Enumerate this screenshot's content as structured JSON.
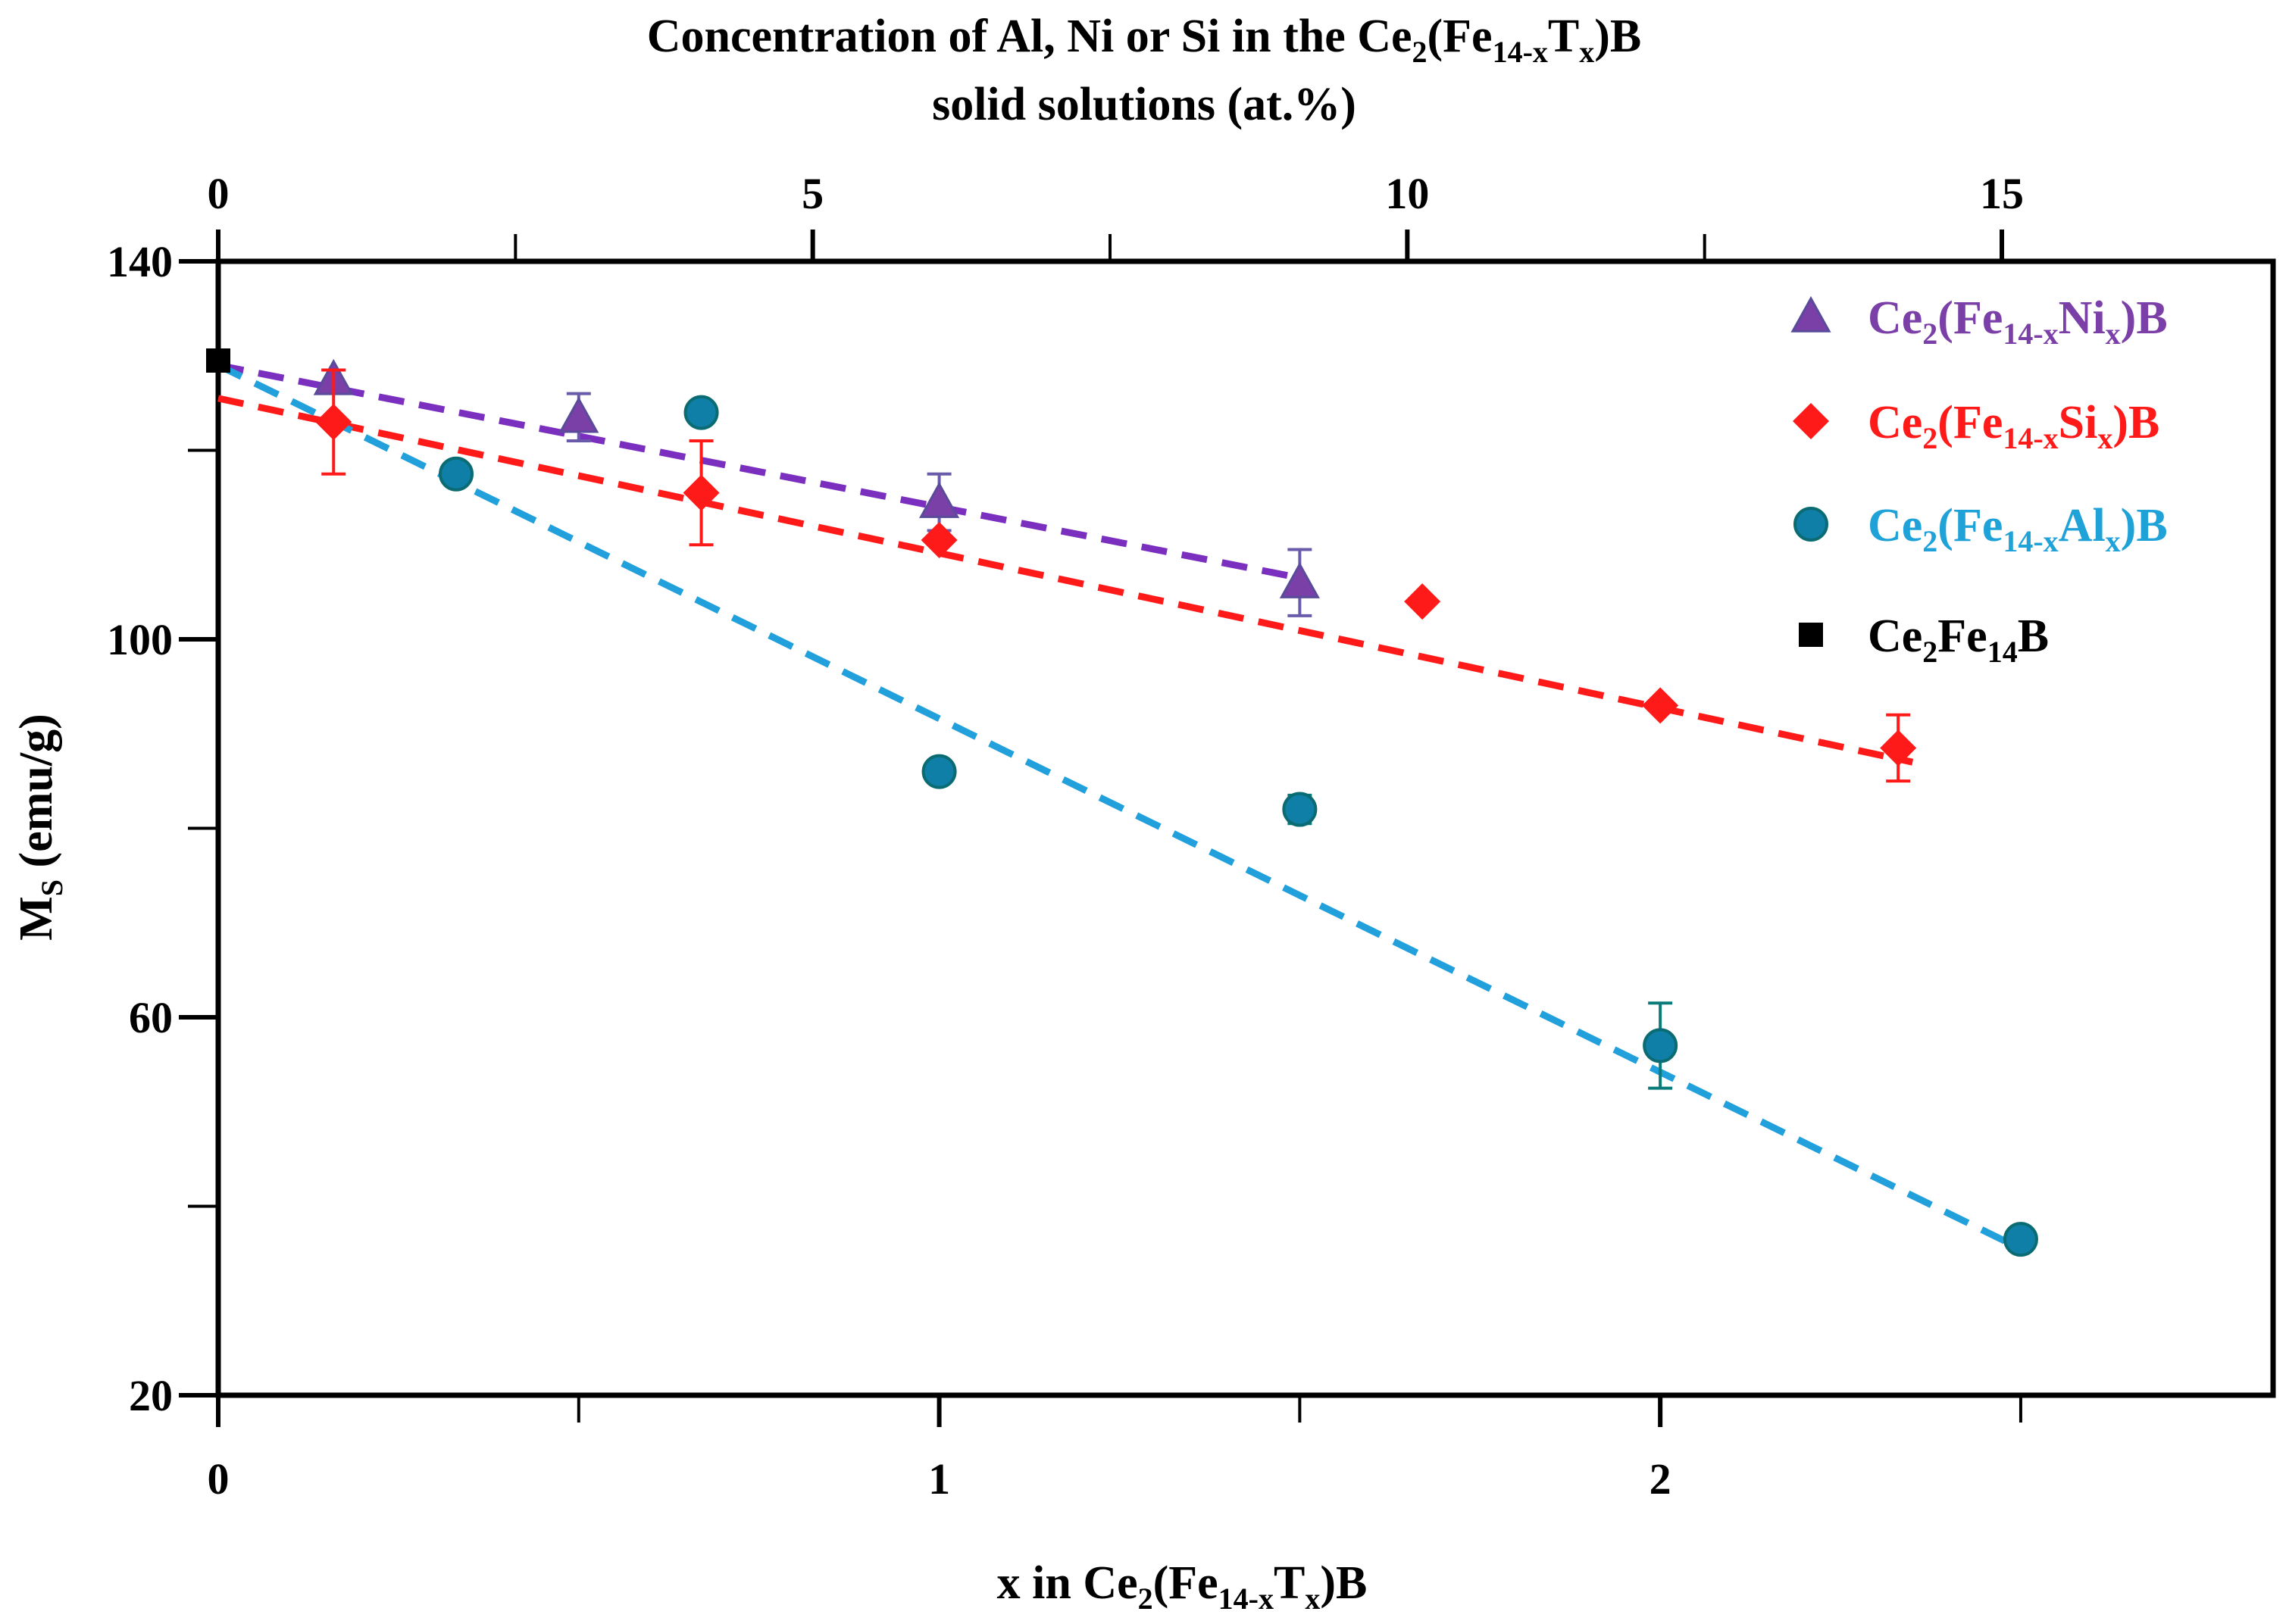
{
  "chart_data": {
    "type": "scatter",
    "title": {
      "line1": [
        "Concentration of Al, Ni or Si in the Ce",
        "2",
        "(Fe",
        "14-x",
        "T",
        "x",
        ")B"
      ],
      "line2": "solid solutions (at.%)"
    },
    "xlabel": [
      "x in Ce",
      "2",
      "(Fe",
      "14-x",
      "T",
      "x",
      ")B"
    ],
    "ylabel": [
      "M",
      "S",
      " (emu/g)"
    ],
    "x_range": [
      0,
      2.85
    ],
    "y_range": [
      20,
      140
    ],
    "x_ticks": [
      {
        "value": 0,
        "label": "0"
      },
      {
        "value": 1,
        "label": "1"
      },
      {
        "value": 2,
        "label": "2"
      }
    ],
    "x_minor_ticks": [
      0.5,
      1.5,
      2.5
    ],
    "y_ticks": [
      {
        "value": 20,
        "label": "20"
      },
      {
        "value": 60,
        "label": "60"
      },
      {
        "value": 100,
        "label": "100"
      },
      {
        "value": 140,
        "label": "140"
      }
    ],
    "y_minor_ticks": [
      40,
      80,
      120
    ],
    "top_axis": {
      "per_x_unit": 6.0635,
      "ticks": [
        {
          "value": 0,
          "label": "0"
        },
        {
          "value": 5,
          "label": "5"
        },
        {
          "value": 10,
          "label": "10"
        },
        {
          "value": 15,
          "label": "15"
        }
      ],
      "minor_ticks": [
        2.5,
        7.5,
        12.5
      ]
    },
    "series": [
      {
        "name": [
          "Ce",
          "2",
          "(Fe",
          "14-x",
          "Ni",
          "x",
          ")B"
        ],
        "color": "#7b3fa8",
        "marker": "triangle",
        "points": [
          {
            "x": 0.16,
            "y": 127.5,
            "err": 1.0
          },
          {
            "x": 0.5,
            "y": 123.5,
            "err": 2.5
          },
          {
            "x": 1.0,
            "y": 114.5,
            "err": 3.0
          },
          {
            "x": 1.5,
            "y": 106.0,
            "err": 3.5
          }
        ],
        "fit": {
          "x0": 0.0,
          "y0": 129.0,
          "x1": 1.5,
          "y1": 106.5,
          "color": "#7b2fbf"
        }
      },
      {
        "name": [
          "Ce",
          "2",
          "(Fe",
          "14-x",
          "Si",
          "x",
          ")B"
        ],
        "color": "#ff1a1a",
        "marker": "diamond",
        "points": [
          {
            "x": 0.16,
            "y": 123.0,
            "err": 5.5
          },
          {
            "x": 0.67,
            "y": 115.5,
            "err": 5.5
          },
          {
            "x": 1.0,
            "y": 110.5,
            "err": 0
          },
          {
            "x": 1.67,
            "y": 104.0,
            "err": 0
          },
          {
            "x": 2.0,
            "y": 93.0,
            "err": 0
          },
          {
            "x": 2.33,
            "y": 88.5,
            "err": 3.5
          }
        ],
        "fit": {
          "x0": 0.0,
          "y0": 125.5,
          "x1": 2.35,
          "y1": 87.0,
          "color": "#ff1a1a"
        }
      },
      {
        "name": [
          "Ce",
          "2",
          "(Fe",
          "14-x",
          "Al",
          "x",
          ")B"
        ],
        "color": "#1a8fb0",
        "marker": "circle",
        "points": [
          {
            "x": 0.33,
            "y": 117.5,
            "err": 0
          },
          {
            "x": 0.67,
            "y": 124.0,
            "err": 0
          },
          {
            "x": 1.0,
            "y": 86.0,
            "err": 0
          },
          {
            "x": 1.5,
            "y": 82.0,
            "err": 1.5
          },
          {
            "x": 2.0,
            "y": 57.0,
            "err": 4.5
          },
          {
            "x": 2.5,
            "y": 36.5,
            "err": 0
          }
        ],
        "fit": {
          "x0": 0.0,
          "y0": 129.0,
          "x1": 2.5,
          "y1": 35.5,
          "color": "#22a0dc"
        }
      },
      {
        "name": [
          "Ce",
          "2",
          "Fe",
          "14",
          "B"
        ],
        "color": "#000000",
        "marker": "square",
        "points": [
          {
            "x": 0.0,
            "y": 129.5,
            "err": 0
          }
        ]
      }
    ],
    "legend": "top-right"
  }
}
